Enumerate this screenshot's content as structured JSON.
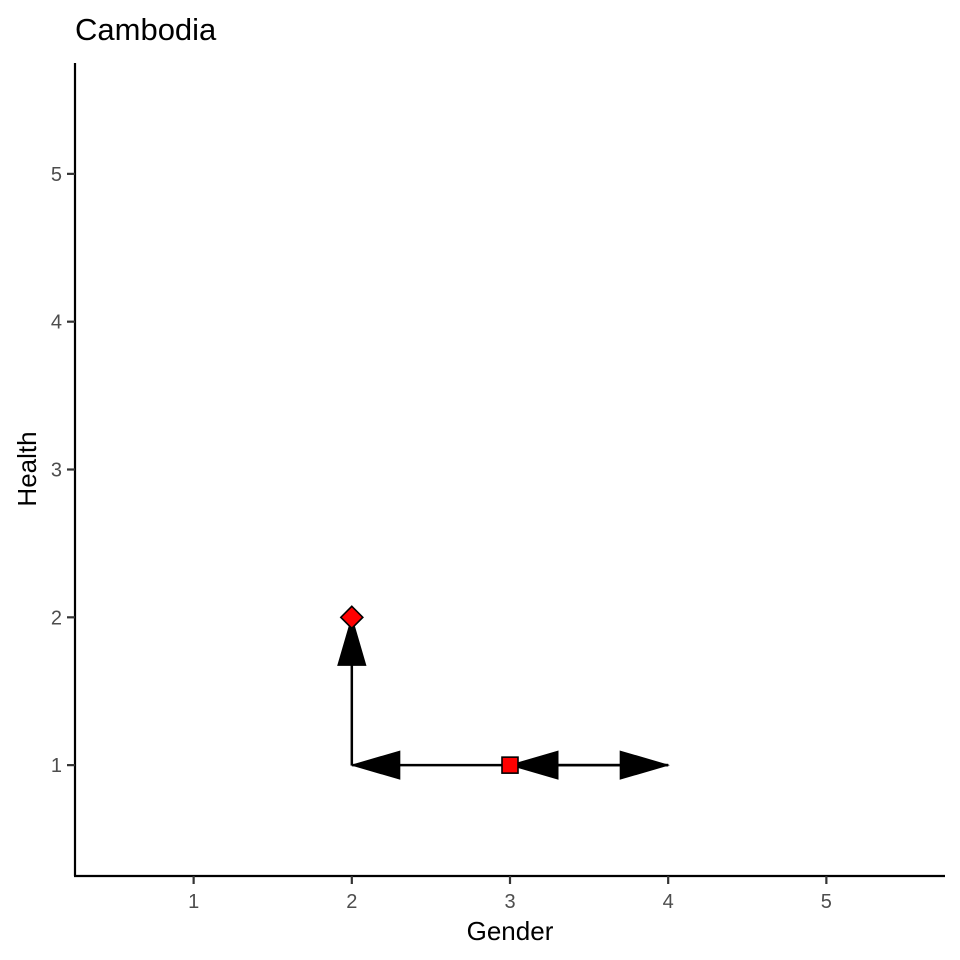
{
  "chart_data": {
    "type": "scatter",
    "title": "Cambodia",
    "xlabel": "Gender",
    "ylabel": "Health",
    "xlim": [
      0.25,
      5.75
    ],
    "ylim": [
      0.25,
      5.75
    ],
    "xticks": [
      1,
      2,
      3,
      4,
      5
    ],
    "yticks": [
      1,
      2,
      3,
      4,
      5
    ],
    "grid": false,
    "colors": {
      "point_fill": "#ff0000",
      "point_stroke": "#000000",
      "line": "#000000"
    },
    "points": [
      {
        "x": 2,
        "y": 2,
        "shape": "diamond"
      },
      {
        "x": 3,
        "y": 1,
        "shape": "square"
      }
    ],
    "arrows": [
      {
        "from": [
          2,
          1
        ],
        "to": [
          2,
          2
        ]
      },
      {
        "from": [
          3,
          1
        ],
        "to": [
          2,
          1
        ]
      },
      {
        "from": [
          4,
          1
        ],
        "to": [
          3,
          1
        ]
      },
      {
        "from": [
          3,
          1
        ],
        "to": [
          4,
          1
        ]
      }
    ]
  }
}
